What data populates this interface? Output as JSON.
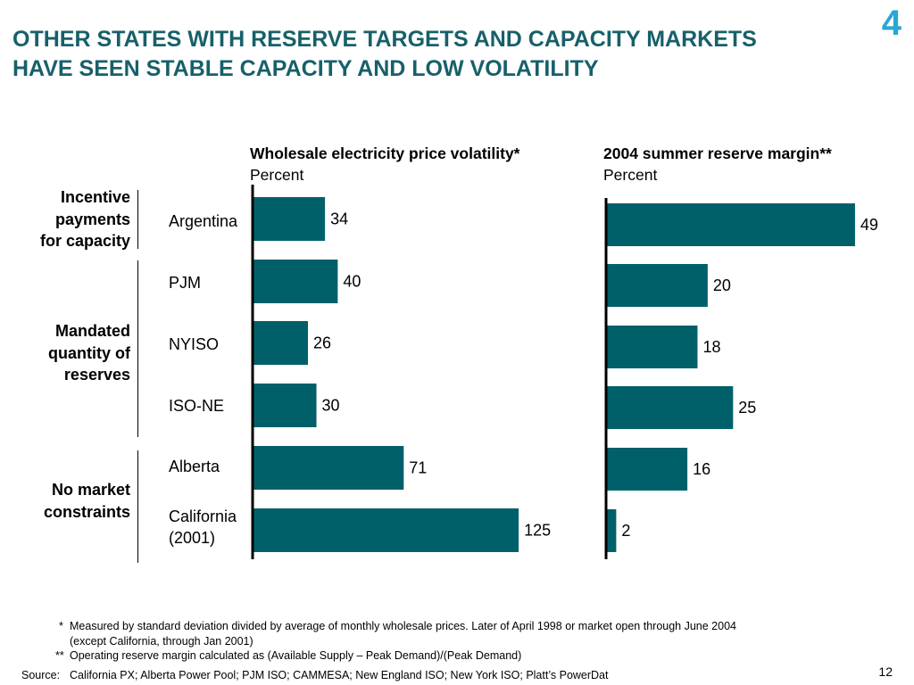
{
  "slide": {
    "number": "4",
    "title_lines": [
      "OTHER STATES WITH RESERVE TARGETS AND CAPACITY MARKETS",
      "HAVE SEEN STABLE CAPACITY AND LOW VOLATILITY"
    ],
    "page": "12"
  },
  "groups": [
    {
      "lines": [
        "Incentive",
        "payments",
        "for capacity"
      ]
    },
    {
      "lines": [
        "Mandated",
        "quantity of",
        "reserves"
      ]
    },
    {
      "lines": [
        "No market",
        "constraints"
      ]
    }
  ],
  "chart_data": [
    {
      "type": "bar",
      "orientation": "horizontal",
      "title": "Wholesale electricity price volatility*",
      "subtitle": "Percent",
      "categories": [
        "Argentina",
        "PJM",
        "NYISO",
        "ISO-NE",
        "Alberta",
        "California (2001)"
      ],
      "category_lines": [
        [
          "Argentina"
        ],
        [
          "PJM"
        ],
        [
          "NYISO"
        ],
        [
          "ISO-NE"
        ],
        [
          "Alberta"
        ],
        [
          "California",
          "(2001)"
        ]
      ],
      "values": [
        34,
        40,
        26,
        30,
        71,
        125
      ],
      "xlim": [
        0,
        130
      ],
      "grid": false,
      "color": "#00606a"
    },
    {
      "type": "bar",
      "orientation": "horizontal",
      "title": "2004 summer reserve margin**",
      "subtitle": "Percent",
      "categories": [
        "Argentina",
        "PJM",
        "NYISO",
        "ISO-NE",
        "Alberta",
        "California (2001)"
      ],
      "values": [
        49,
        20,
        18,
        25,
        16,
        2
      ],
      "xlim": [
        0,
        52
      ],
      "grid": false,
      "color": "#00606a"
    }
  ],
  "footnotes": {
    "star_mark": "*",
    "star_line1": "Measured by standard deviation divided by average of monthly wholesale prices.  Later of April 1998 or market open through June 2004",
    "star_line2": "(except  California, through Jan 2001)",
    "dstar_mark": "**",
    "dstar_line": "Operating reserve margin calculated as (Available Supply – Peak Demand)/(Peak Demand)",
    "source_label": "Source:",
    "source_text": "California PX; Alberta Power Pool; PJM ISO; CAMMESA; New England ISO; New York ISO; Platt’s PowerDat"
  }
}
